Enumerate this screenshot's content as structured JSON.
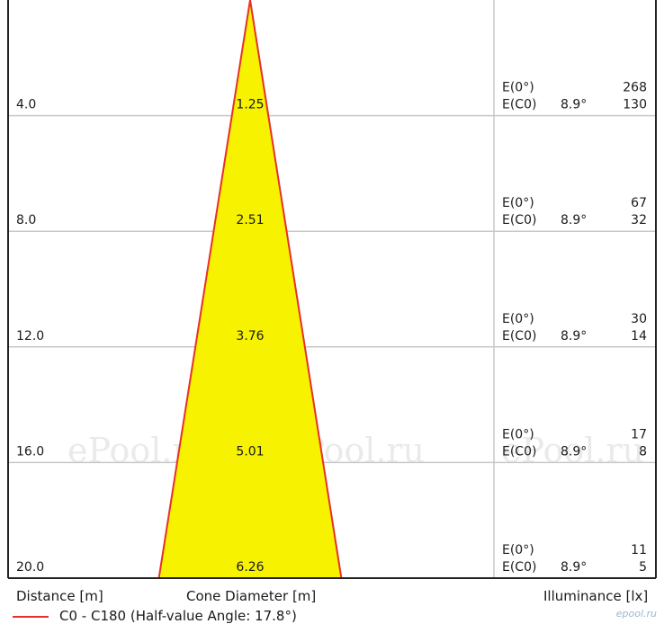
{
  "chart_data": {
    "type": "cone",
    "xlabel": "Distance [m]",
    "middle_label": "Cone Diameter [m]",
    "ylabel": "Illuminance [lx]",
    "series_name": "C0 - C180 (Half-value Angle: 17.8°)",
    "distances": [
      "4.0",
      "8.0",
      "12.0",
      "16.0",
      "20.0"
    ],
    "distance_values": [
      4,
      8,
      12,
      16,
      20
    ],
    "diameters": [
      "1.25",
      "2.51",
      "3.76",
      "5.01",
      "6.26"
    ],
    "diameter_values": [
      1.25,
      2.51,
      3.76,
      5.01,
      6.26
    ],
    "e0_label": "E(0°)",
    "ec0_label": "E(C0)",
    "angle": "8.9°",
    "e0_values": [
      "268",
      "67",
      "30",
      "17",
      "11"
    ],
    "ec0_values": [
      "130",
      "32",
      "14",
      "8",
      "5"
    ],
    "fill_color": "#f6f200",
    "edge_color": "#e8302a",
    "grid_color": "#c8c8c8"
  },
  "watermarks": [
    "ePool.ru",
    "ePool.ru",
    "ePool.ru"
  ],
  "brand": "epool.ru"
}
